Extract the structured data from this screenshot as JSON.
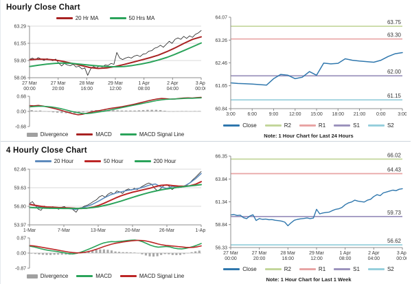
{
  "panels": {
    "hourly": {
      "title": "Hourly Close Chart",
      "price_legend": [
        {
          "label": "20 Hr MA",
          "color": "#a82222",
          "type": "line"
        },
        {
          "label": "50 Hrs MA",
          "color": "#2aa35a",
          "type": "line"
        }
      ],
      "macd_legend": [
        {
          "label": "Divergence",
          "color": "#a0a0a0",
          "type": "bar"
        },
        {
          "label": "MACD",
          "color": "#a82222",
          "type": "line"
        },
        {
          "label": "MACD Signal Line",
          "color": "#2aa35a",
          "type": "line"
        }
      ]
    },
    "hourly_pivot": {
      "legend": [
        {
          "label": "Close",
          "color": "#2f77ad",
          "type": "line"
        },
        {
          "label": "R2",
          "color": "#c3d69b",
          "type": "line"
        },
        {
          "label": "R1",
          "color": "#e8a4a4",
          "type": "line"
        },
        {
          "label": "S1",
          "color": "#9c93bd",
          "type": "line"
        },
        {
          "label": "S2",
          "color": "#96cfdc",
          "type": "line"
        }
      ],
      "note": "Note: 1 Hour Chart for Last 24 Hours"
    },
    "four_hourly": {
      "title": "4 Hourly Close Chart",
      "price_legend": [
        {
          "label": "20 Hour",
          "color": "#5e8bbd",
          "type": "line"
        },
        {
          "label": "50 Hour",
          "color": "#bc2626",
          "type": "line"
        },
        {
          "label": "200 Hour",
          "color": "#2aa35a",
          "type": "line"
        }
      ],
      "macd_legend": [
        {
          "label": "Divergence",
          "color": "#a0a0a0",
          "type": "bar"
        },
        {
          "label": "MACD",
          "color": "#2aa35a",
          "type": "line"
        },
        {
          "label": "MACD Signal Line",
          "color": "#bc2626",
          "type": "line"
        }
      ]
    },
    "weekly_pivot": {
      "legend": [
        {
          "label": "Close",
          "color": "#2f77ad",
          "type": "line"
        },
        {
          "label": "R2",
          "color": "#c3d69b",
          "type": "line"
        },
        {
          "label": "R1",
          "color": "#e8a4a4",
          "type": "line"
        },
        {
          "label": "S1",
          "color": "#9c93bd",
          "type": "line"
        },
        {
          "label": "S2",
          "color": "#96cfdc",
          "type": "line"
        }
      ],
      "note": "Note: 1 Hour Chart for Last 1 Week"
    }
  },
  "chart_data": [
    {
      "id": "hourly_price",
      "type": "line",
      "title": "Hourly Close Chart",
      "ylim": [
        58.06,
        63.29
      ],
      "yticks": [
        "63.29",
        "61.55",
        "59.80",
        "58.06"
      ],
      "xticks": [
        "27 Mar|00:00",
        "27 Mar|20:00",
        "28 Mar|16:00",
        "29 Mar|12:00",
        "1 Apr|08:00",
        "2 Apr|04:00",
        "3 Apr|00:00"
      ],
      "grid": true,
      "series": [
        {
          "name": "Close",
          "color": "#1c1c1c",
          "width": 0.8,
          "values": [
            59.92,
            60.05,
            59.88,
            60.1,
            59.95,
            59.82,
            60.0,
            59.9,
            59.78,
            59.95,
            59.55,
            59.25,
            59.5,
            59.35,
            59.28,
            59.42,
            59.15,
            59.22,
            58.95,
            59.05,
            58.3,
            58.95,
            59.2,
            59.05,
            59.25,
            59.15,
            59.35,
            59.3,
            59.5,
            59.42,
            60.62,
            60.05,
            59.9,
            60.05,
            60.15,
            60.05,
            60.25,
            60.35,
            60.2,
            60.45,
            60.5,
            60.75,
            60.8,
            61.05,
            61.15,
            61.35,
            61.15,
            61.45,
            61.75,
            61.55,
            61.95,
            62.1,
            61.95,
            62.25,
            62.05,
            62.3,
            62.15,
            62.45,
            62.6,
            62.85
          ]
        },
        {
          "name": "20 Hr MA",
          "color": "#a82222",
          "width": 2,
          "values": [
            59.88,
            59.94,
            59.93,
            59.85,
            59.7,
            59.5,
            59.3,
            59.1,
            59.0,
            59.05,
            59.2,
            59.4,
            59.62,
            59.85,
            60.08,
            60.35,
            60.7,
            61.1,
            61.55,
            61.95,
            62.2
          ]
        },
        {
          "name": "50 Hrs MA",
          "color": "#2aa35a",
          "width": 2,
          "values": [
            59.2,
            59.32,
            59.44,
            59.52,
            59.55,
            59.5,
            59.42,
            59.33,
            59.25,
            59.19,
            59.17,
            59.2,
            59.3,
            59.45,
            59.62,
            59.85,
            60.12,
            60.45,
            60.82,
            61.2,
            61.58
          ]
        }
      ]
    },
    {
      "id": "hourly_macd",
      "type": "bar+line",
      "ylim": [
        -0.68,
        0.68
      ],
      "yticks": [
        "0.68",
        "0.00",
        "-0.68"
      ],
      "xticks": [],
      "zero": true,
      "series": [
        {
          "name": "Divergence",
          "type": "bar",
          "color": "#a8a8a8",
          "values": [
            0.06,
            0.03,
            0.04,
            0.01,
            -0.02,
            -0.04,
            -0.06,
            -0.07,
            -0.08,
            -0.09,
            -0.09,
            -0.09,
            -0.04,
            0.02,
            0.05,
            0.06,
            0.06,
            0.07,
            0.07,
            0.06,
            0.05,
            0.04,
            0.04,
            0.04,
            0.04,
            0.05,
            0.06,
            0.07,
            0.07,
            0.07,
            0.06,
            0.03,
            0.0,
            0.0,
            0.01,
            0.02,
            0.02,
            0.01,
            0.02,
            0.02
          ]
        },
        {
          "name": "MACD",
          "color": "#a82222",
          "width": 1.6,
          "values": [
            0.26,
            0.25,
            0.27,
            0.24,
            0.2,
            0.16,
            0.11,
            0.06,
            0.0,
            -0.06,
            -0.11,
            -0.15,
            -0.13,
            -0.08,
            -0.03,
            0.01,
            0.04,
            0.08,
            0.12,
            0.15,
            0.18,
            0.21,
            0.25,
            0.29,
            0.33,
            0.38,
            0.43,
            0.48,
            0.52,
            0.56,
            0.58,
            0.57,
            0.55,
            0.56,
            0.58,
            0.6,
            0.61,
            0.6,
            0.62,
            0.63
          ]
        },
        {
          "name": "MACD Signal Line",
          "color": "#2aa35a",
          "width": 1.6,
          "values": [
            0.2,
            0.22,
            0.23,
            0.23,
            0.22,
            0.2,
            0.17,
            0.13,
            0.08,
            0.03,
            -0.02,
            -0.06,
            -0.09,
            -0.1,
            -0.08,
            -0.05,
            -0.02,
            0.01,
            0.05,
            0.09,
            0.13,
            0.17,
            0.21,
            0.25,
            0.29,
            0.33,
            0.37,
            0.41,
            0.45,
            0.49,
            0.52,
            0.54,
            0.55,
            0.56,
            0.57,
            0.58,
            0.59,
            0.59,
            0.6,
            0.61
          ]
        }
      ]
    },
    {
      "id": "hourly_pivot",
      "type": "line",
      "ylim": [
        60.84,
        64.07
      ],
      "yticks": [
        "64.07",
        "63.26",
        "62.46",
        "61.65",
        "60.84"
      ],
      "xticks": [
        "3:00",
        "6:00",
        "9:00",
        "12:00",
        "15:00",
        "18:00",
        "21:00",
        "0:00",
        "3:00"
      ],
      "grid": false,
      "hlines": [
        {
          "label": "63.75",
          "value": 63.75,
          "color": "#c3d69b"
        },
        {
          "label": "63.30",
          "value": 63.3,
          "color": "#e8a4a4"
        },
        {
          "label": "62.00",
          "value": 62.0,
          "color": "#9c93bd"
        },
        {
          "label": "61.15",
          "value": 61.15,
          "color": "#96cfdc"
        }
      ],
      "series": [
        {
          "name": "Close",
          "color": "#2f77ad",
          "width": 1.5,
          "values": [
            61.75,
            61.73,
            61.72,
            61.71,
            61.69,
            61.67,
            61.9,
            62.05,
            62.02,
            61.9,
            61.95,
            62.15,
            62.02,
            62.45,
            62.42,
            62.44,
            62.6,
            62.55,
            62.52,
            62.5,
            62.48,
            62.55,
            62.68,
            62.78,
            62.82
          ]
        }
      ]
    },
    {
      "id": "four_hourly_price",
      "type": "line",
      "title": "4 Hourly Close Chart",
      "ylim": [
        53.97,
        62.46
      ],
      "yticks": [
        "62.46",
        "59.63",
        "56.80",
        "53.97"
      ],
      "xticks": [
        "1-Mar",
        "7-Mar",
        "13-Mar",
        "20-Mar",
        "26-Mar",
        "1-Apr"
      ],
      "grid": true,
      "series": [
        {
          "name": "Close",
          "color": "#1c1c1c",
          "width": 0.8,
          "values": [
            57.25,
            57.5,
            56.9,
            56.35,
            56.2,
            56.85,
            56.55,
            56.45,
            56.75,
            56.55,
            56.35,
            56.65,
            56.75,
            56.45,
            56.6,
            56.25,
            55.9,
            56.55,
            56.6,
            56.85,
            57.0,
            57.25,
            57.55,
            57.8,
            58.25,
            58.45,
            58.2,
            58.65,
            58.9,
            58.65,
            59.15,
            59.0,
            58.75,
            59.25,
            59.45,
            59.25,
            59.55,
            59.35,
            59.65,
            59.9,
            60.15,
            60.35,
            60.15,
            59.55,
            59.15,
            59.45,
            59.9,
            60.1,
            59.85,
            59.35,
            59.65,
            59.8,
            59.65,
            59.9,
            60.0,
            60.35,
            60.8,
            61.2,
            61.65,
            62.1
          ]
        },
        {
          "name": "20 Hour",
          "color": "#5e8bbd",
          "width": 1.6,
          "values": [
            57.2,
            56.9,
            56.6,
            56.62,
            56.65,
            56.6,
            56.55,
            56.45,
            56.32,
            56.5,
            56.78,
            57.1,
            57.55,
            58.05,
            58.5,
            58.8,
            59.0,
            59.2,
            59.35,
            59.5,
            59.75,
            60.05,
            60.2,
            59.75,
            59.5,
            59.85,
            59.65,
            59.85,
            60.35,
            61.0,
            61.8
          ]
        },
        {
          "name": "50 Hour",
          "color": "#bc2626",
          "width": 2,
          "values": [
            57.1,
            56.95,
            56.8,
            56.7,
            56.65,
            56.6,
            56.58,
            56.55,
            56.5,
            56.48,
            56.52,
            56.65,
            56.9,
            57.25,
            57.65,
            58.05,
            58.4,
            58.7,
            58.95,
            59.15,
            59.35,
            59.55,
            59.8,
            60.0,
            60.05,
            59.95,
            59.88,
            59.85,
            59.92,
            60.15,
            60.55
          ]
        },
        {
          "name": "200 Hour",
          "color": "#2aa35a",
          "width": 2,
          "values": [
            56.62,
            56.58,
            56.55,
            56.52,
            56.5,
            56.49,
            56.48,
            56.47,
            56.47,
            56.48,
            56.52,
            56.6,
            56.72,
            56.9,
            57.1,
            57.35,
            57.6,
            57.88,
            58.15,
            58.42,
            58.68,
            58.92,
            59.12,
            59.3,
            59.45,
            59.58,
            59.7,
            59.8,
            59.9,
            60.0,
            60.1
          ]
        }
      ]
    },
    {
      "id": "four_hourly_macd",
      "type": "bar+line",
      "ylim": [
        -0.87,
        0.87
      ],
      "yticks": [
        "0.87",
        "0.00",
        "-0.87"
      ],
      "xticks": [],
      "zero": true,
      "series": [
        {
          "name": "Divergence",
          "type": "bar",
          "color": "#a8a8a8",
          "values": [
            -0.03,
            -0.05,
            -0.08,
            -0.1,
            -0.11,
            -0.11,
            -0.1,
            -0.09,
            -0.09,
            -0.09,
            -0.09,
            -0.08,
            -0.03,
            0.03,
            0.08,
            0.13,
            0.16,
            0.19,
            0.21,
            0.21,
            0.19,
            0.15,
            0.09,
            0.07,
            0.05,
            0.05,
            0.04,
            0.03,
            -0.01,
            -0.07,
            -0.14,
            -0.19,
            -0.2,
            -0.18,
            -0.11,
            -0.06,
            -0.07,
            -0.11,
            -0.12,
            -0.11,
            -0.06,
            0.0,
            0.05,
            0.1,
            0.14
          ]
        },
        {
          "name": "MACD",
          "color": "#2aa35a",
          "width": 1.6,
          "values": [
            0.4,
            0.36,
            0.3,
            0.24,
            0.19,
            0.15,
            0.12,
            0.09,
            0.05,
            0.01,
            -0.03,
            -0.05,
            -0.02,
            0.04,
            0.12,
            0.21,
            0.3,
            0.4,
            0.5,
            0.58,
            0.63,
            0.66,
            0.65,
            0.67,
            0.69,
            0.72,
            0.74,
            0.75,
            0.72,
            0.65,
            0.55,
            0.45,
            0.38,
            0.34,
            0.36,
            0.38,
            0.35,
            0.29,
            0.25,
            0.24,
            0.27,
            0.32,
            0.38,
            0.46,
            0.55
          ]
        },
        {
          "name": "MACD Signal Line",
          "color": "#bc2626",
          "width": 1.6,
          "values": [
            0.43,
            0.41,
            0.38,
            0.34,
            0.3,
            0.26,
            0.22,
            0.18,
            0.14,
            0.1,
            0.06,
            0.03,
            0.01,
            0.01,
            0.04,
            0.08,
            0.14,
            0.21,
            0.29,
            0.37,
            0.44,
            0.51,
            0.56,
            0.6,
            0.64,
            0.67,
            0.7,
            0.72,
            0.73,
            0.72,
            0.69,
            0.64,
            0.58,
            0.52,
            0.47,
            0.44,
            0.42,
            0.4,
            0.37,
            0.35,
            0.33,
            0.32,
            0.33,
            0.36,
            0.41
          ]
        }
      ]
    },
    {
      "id": "weekly_pivot",
      "type": "line",
      "ylim": [
        56.33,
        66.35
      ],
      "yticks": [
        "66.35",
        "63.84",
        "61.34",
        "58.84",
        "56.33"
      ],
      "xticks": [
        "27 Mar|00:00",
        "27 Mar|20:00",
        "28 Mar|16:00",
        "29 Mar|12:00",
        "1 Apr|08:00",
        "2 Apr|04:00",
        "3 Apr|00:00"
      ],
      "grid": false,
      "hlines": [
        {
          "label": "66.02",
          "value": 66.02,
          "color": "#c3d69b"
        },
        {
          "label": "64.43",
          "value": 64.43,
          "color": "#e8a4a4"
        },
        {
          "label": "59.73",
          "value": 59.73,
          "color": "#9c93bd"
        },
        {
          "label": "56.62",
          "value": 56.62,
          "color": "#96cfdc"
        }
      ],
      "series": [
        {
          "name": "Close",
          "color": "#2f77ad",
          "width": 1.4,
          "values": [
            59.9,
            59.95,
            59.85,
            59.88,
            59.6,
            59.5,
            59.78,
            59.92,
            59.3,
            59.5,
            59.42,
            59.45,
            59.38,
            59.4,
            59.32,
            59.28,
            59.22,
            59.12,
            58.72,
            59.05,
            59.32,
            59.42,
            59.48,
            59.52,
            59.58,
            59.5,
            59.56,
            60.52,
            60.02,
            60.12,
            60.18,
            60.22,
            60.38,
            60.52,
            60.58,
            60.72,
            61.02,
            61.22,
            61.32,
            61.52,
            61.42,
            61.36,
            61.32,
            61.52,
            61.62,
            61.92,
            62.12,
            62.02,
            62.32,
            62.42,
            62.52,
            62.62,
            62.56,
            62.72,
            62.78
          ]
        }
      ]
    }
  ]
}
